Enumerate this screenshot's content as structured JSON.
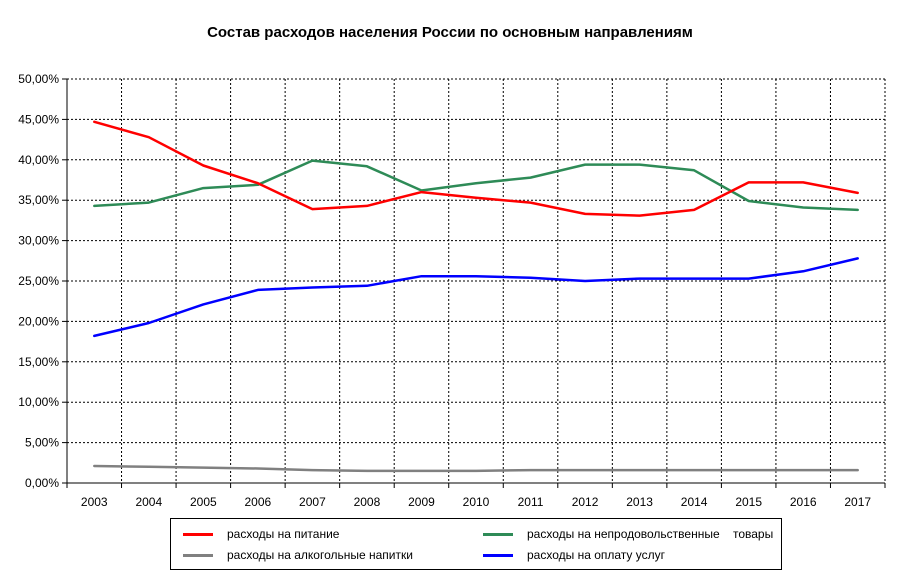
{
  "chart_data": {
    "type": "line",
    "title": "Состав расходов населения России по основным направлениям",
    "xlabel": "",
    "ylabel": "",
    "categories": [
      "2003",
      "2004",
      "2005",
      "2006",
      "2007",
      "2008",
      "2009",
      "2010",
      "2011",
      "2012",
      "2013",
      "2014",
      "2015",
      "2016",
      "2017"
    ],
    "ylim": [
      0,
      50
    ],
    "yticks": [
      "0,00%",
      "5,00%",
      "10,00%",
      "15,00%",
      "20,00%",
      "25,00%",
      "30,00%",
      "35,00%",
      "40,00%",
      "45,00%",
      "50,00%"
    ],
    "grid": true,
    "legend_position": "bottom",
    "series": [
      {
        "name": "расходы на питание",
        "color": "#ff0000",
        "values": [
          44.7,
          42.8,
          39.3,
          37.1,
          33.9,
          34.3,
          36.0,
          35.3,
          34.7,
          33.3,
          33.1,
          33.8,
          37.2,
          37.2,
          35.9
        ]
      },
      {
        "name": "расходы на непродовольственные    товары",
        "color": "#2e8b57",
        "values": [
          34.3,
          34.7,
          36.5,
          36.9,
          39.9,
          39.2,
          36.2,
          37.1,
          37.8,
          39.4,
          39.4,
          38.7,
          34.9,
          34.1,
          33.8
        ]
      },
      {
        "name": "расходы на алкогольные напитки",
        "color": "#808080",
        "values": [
          2.1,
          2.0,
          1.9,
          1.8,
          1.6,
          1.5,
          1.5,
          1.5,
          1.6,
          1.6,
          1.6,
          1.6,
          1.6,
          1.6,
          1.6
        ]
      },
      {
        "name": "расходы на оплату услуг",
        "color": "#0000ff",
        "values": [
          18.2,
          19.8,
          22.1,
          23.9,
          24.2,
          24.4,
          25.6,
          25.6,
          25.4,
          25.0,
          25.3,
          25.3,
          25.3,
          26.2,
          27.8
        ]
      }
    ]
  }
}
